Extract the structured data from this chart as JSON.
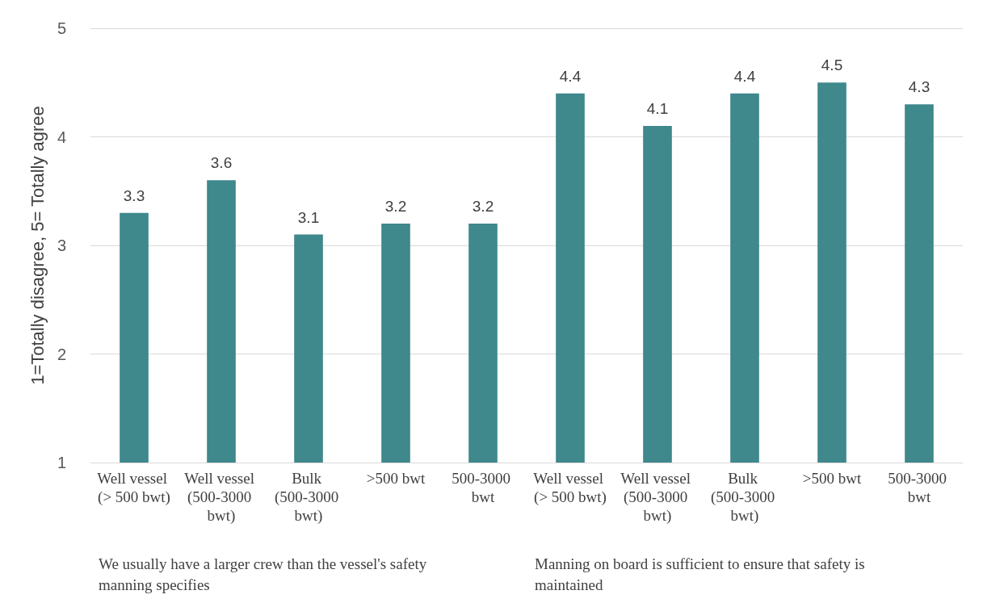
{
  "chart_data": {
    "type": "bar",
    "ylabel": "1=Totally disagree, 5= Totally agree",
    "categories": [
      "Well vessel (> 500 bwt)",
      "Well vessel (500-3000 bwt)",
      "Bulk (500-3000 bwt)",
      ">500 bwt",
      "500-3000 bwt",
      "Well vessel (> 500 bwt)",
      "Well vessel (500-3000 bwt)",
      "Bulk (500-3000 bwt)",
      ">500 bwt",
      "500-3000 bwt"
    ],
    "values": [
      3.3,
      3.6,
      3.1,
      3.2,
      3.2,
      4.4,
      4.1,
      4.4,
      4.5,
      4.3
    ],
    "color": "#3f888c",
    "ylim": [
      1,
      5
    ],
    "yticks": [
      1,
      2,
      3,
      4,
      5
    ],
    "grid": "y",
    "data_labels": true,
    "annotations": [
      "We usually have a larger crew than the vessel's safety manning specifies",
      "Manning on board is sufficient to ensure that safety is maintained"
    ]
  }
}
